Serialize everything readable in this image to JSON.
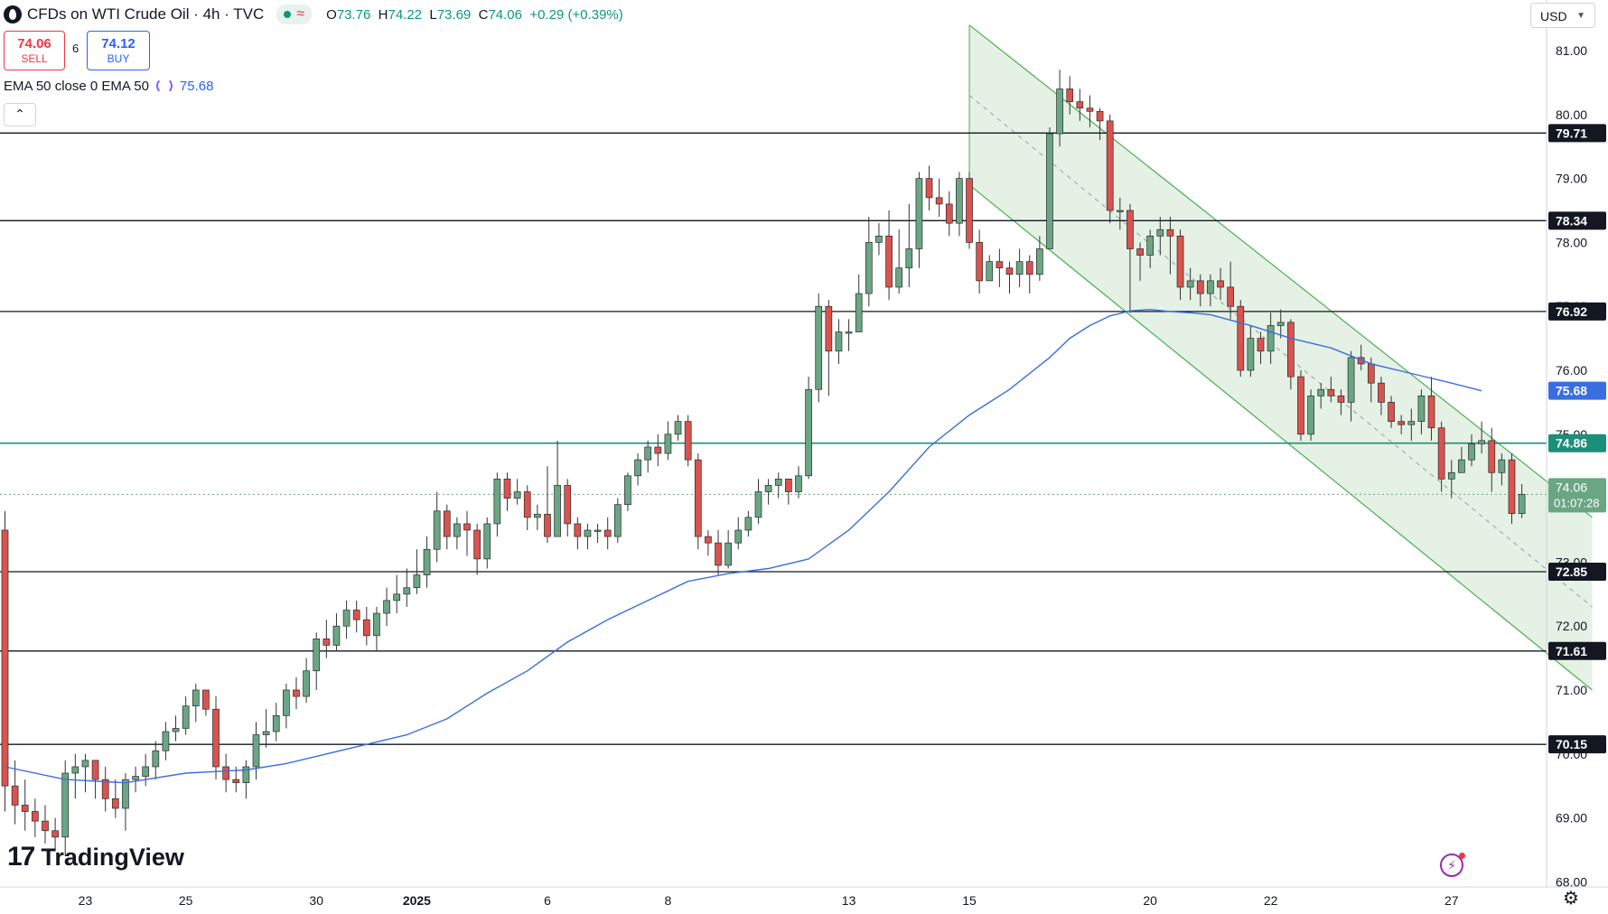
{
  "header": {
    "symbol_title": "CFDs on WTI Crude Oil · 4h · TVC",
    "ohlc": {
      "o_label": "O",
      "o": "73.76",
      "h_label": "H",
      "h": "74.22",
      "l_label": "L",
      "l": "73.69",
      "c_label": "C",
      "c": "74.06",
      "change": "+0.29 (+0.39%)"
    },
    "status_glyph": "≈"
  },
  "trade": {
    "sell_price": "74.06",
    "sell_label": "SELL",
    "spread": "6",
    "buy_price": "74.12",
    "buy_label": "BUY"
  },
  "indicator": {
    "label": "EMA 50 close 0 EMA 50",
    "value": "75.68",
    "icon": "refresh-icon"
  },
  "toolbar": {
    "collapse_glyph": "⌃",
    "currency": "USD",
    "settings_glyph": "⚙"
  },
  "branding": {
    "logo_mark": "17",
    "logo_text": "TradingView"
  },
  "colors": {
    "up": "#6aa684",
    "down": "#d9534f",
    "wick": "#333333",
    "ema": "#3a6ee0",
    "channel_fill": "#e1f0e1",
    "channel_line": "#4caf50",
    "level_line": "#131722",
    "teal_line": "#1b8f7a",
    "price_badge": "#6aa684"
  },
  "chart_data": {
    "type": "candlestick",
    "timeframe": "4h",
    "ylim": [
      68.0,
      81.55
    ],
    "y_ticks": [
      "81.00",
      "80.00",
      "79.00",
      "78.00",
      "77.00",
      "76.00",
      "75.00",
      "74.00",
      "73.00",
      "72.00",
      "71.00",
      "70.00",
      "69.00",
      "68.00"
    ],
    "x_ticks": [
      {
        "label": "23",
        "i": 8
      },
      {
        "label": "25",
        "i": 18
      },
      {
        "label": "30",
        "i": 31
      },
      {
        "label": "2025",
        "i": 41,
        "bold": true
      },
      {
        "label": "6",
        "i": 54
      },
      {
        "label": "8",
        "i": 66
      },
      {
        "label": "13",
        "i": 84
      },
      {
        "label": "15",
        "i": 96
      },
      {
        "label": "20",
        "i": 114
      },
      {
        "label": "22",
        "i": 126
      },
      {
        "label": "27",
        "i": 144
      }
    ],
    "horizontal_levels": [
      {
        "value": 79.71,
        "label": "79.71"
      },
      {
        "value": 78.34,
        "label": "78.34"
      },
      {
        "value": 76.92,
        "label": "76.92"
      },
      {
        "value": 72.85,
        "label": "72.85"
      },
      {
        "value": 71.61,
        "label": "71.61"
      },
      {
        "value": 70.15,
        "label": "70.15"
      }
    ],
    "teal_level": {
      "value": 74.86,
      "label": "74.86"
    },
    "ema_badge": {
      "value": 75.68,
      "label": "75.68"
    },
    "last_price": {
      "value": 74.06,
      "label": "74.06",
      "countdown": "01:07:28"
    },
    "channel": {
      "upper": [
        {
          "i": 96,
          "v": 81.4
        },
        {
          "i": 158,
          "v": 73.7
        }
      ],
      "lower": [
        {
          "i": 96,
          "v": 78.9
        },
        {
          "i": 158,
          "v": 71.0
        }
      ],
      "mid": [
        {
          "i": 96,
          "v": 80.3
        },
        {
          "i": 158,
          "v": 72.3
        }
      ]
    },
    "ema50": [
      [
        0,
        69.8
      ],
      [
        6,
        69.6
      ],
      [
        12,
        69.55
      ],
      [
        18,
        69.7
      ],
      [
        24,
        69.75
      ],
      [
        28,
        69.85
      ],
      [
        32,
        70.0
      ],
      [
        36,
        70.15
      ],
      [
        40,
        70.3
      ],
      [
        44,
        70.55
      ],
      [
        48,
        70.95
      ],
      [
        52,
        71.3
      ],
      [
        56,
        71.75
      ],
      [
        60,
        72.1
      ],
      [
        64,
        72.4
      ],
      [
        68,
        72.7
      ],
      [
        72,
        72.82
      ],
      [
        76,
        72.9
      ],
      [
        80,
        73.05
      ],
      [
        84,
        73.5
      ],
      [
        88,
        74.1
      ],
      [
        92,
        74.8
      ],
      [
        96,
        75.3
      ],
      [
        100,
        75.7
      ],
      [
        104,
        76.2
      ],
      [
        106,
        76.5
      ],
      [
        108,
        76.7
      ],
      [
        110,
        76.85
      ],
      [
        112,
        76.93
      ],
      [
        114,
        76.95
      ],
      [
        116,
        76.92
      ],
      [
        118,
        76.9
      ],
      [
        120,
        76.87
      ],
      [
        124,
        76.7
      ],
      [
        128,
        76.5
      ],
      [
        132,
        76.35
      ],
      [
        136,
        76.1
      ],
      [
        140,
        75.95
      ],
      [
        144,
        75.8
      ],
      [
        147,
        75.68
      ]
    ],
    "candles": [
      [
        73.5,
        69.5,
        73.8,
        69.1
      ],
      [
        69.5,
        69.2,
        69.9,
        68.9
      ],
      [
        69.2,
        69.1,
        69.6,
        68.8
      ],
      [
        69.1,
        68.95,
        69.3,
        68.7
      ],
      [
        68.95,
        68.8,
        69.2,
        68.6
      ],
      [
        68.8,
        68.7,
        69.0,
        68.5
      ],
      [
        68.7,
        69.7,
        69.9,
        68.4
      ],
      [
        69.7,
        69.8,
        70.0,
        69.3
      ],
      [
        69.8,
        69.9,
        70.0,
        69.4
      ],
      [
        69.9,
        69.6,
        69.9,
        69.3
      ],
      [
        69.6,
        69.3,
        69.8,
        69.1
      ],
      [
        69.3,
        69.15,
        69.6,
        69.0
      ],
      [
        69.15,
        69.6,
        69.7,
        68.8
      ],
      [
        69.6,
        69.65,
        69.8,
        69.4
      ],
      [
        69.65,
        69.8,
        70.0,
        69.5
      ],
      [
        69.8,
        70.05,
        70.2,
        69.6
      ],
      [
        70.05,
        70.35,
        70.5,
        69.9
      ],
      [
        70.35,
        70.4,
        70.6,
        70.2
      ],
      [
        70.4,
        70.75,
        70.9,
        70.3
      ],
      [
        70.75,
        71.0,
        71.1,
        70.5
      ],
      [
        71.0,
        70.7,
        71.0,
        70.6
      ],
      [
        70.7,
        69.8,
        70.9,
        69.6
      ],
      [
        69.8,
        69.6,
        70.0,
        69.4
      ],
      [
        69.6,
        69.55,
        69.8,
        69.4
      ],
      [
        69.55,
        69.8,
        69.9,
        69.3
      ],
      [
        69.8,
        70.3,
        70.5,
        69.6
      ],
      [
        70.3,
        70.35,
        70.7,
        70.1
      ],
      [
        70.35,
        70.6,
        70.8,
        70.2
      ],
      [
        70.6,
        71.0,
        71.1,
        70.4
      ],
      [
        71.0,
        70.9,
        71.2,
        70.7
      ],
      [
        70.9,
        71.3,
        71.5,
        70.8
      ],
      [
        71.3,
        71.8,
        71.9,
        71.0
      ],
      [
        71.8,
        71.7,
        72.1,
        71.5
      ],
      [
        71.7,
        72.0,
        72.2,
        71.6
      ],
      [
        72.0,
        72.25,
        72.4,
        71.8
      ],
      [
        72.25,
        72.1,
        72.4,
        71.9
      ],
      [
        72.1,
        71.85,
        72.3,
        71.7
      ],
      [
        71.85,
        72.2,
        72.3,
        71.6
      ],
      [
        72.2,
        72.4,
        72.6,
        72.0
      ],
      [
        72.4,
        72.5,
        72.8,
        72.2
      ],
      [
        72.5,
        72.6,
        72.9,
        72.3
      ],
      [
        72.6,
        72.8,
        73.2,
        72.5
      ],
      [
        72.8,
        73.2,
        73.4,
        72.6
      ],
      [
        73.2,
        73.8,
        74.1,
        73.0
      ],
      [
        73.8,
        73.4,
        73.9,
        73.2
      ],
      [
        73.4,
        73.6,
        73.7,
        73.2
      ],
      [
        73.6,
        73.5,
        73.8,
        73.1
      ],
      [
        73.5,
        73.05,
        73.6,
        72.8
      ],
      [
        73.05,
        73.6,
        73.7,
        72.9
      ],
      [
        73.6,
        74.3,
        74.4,
        73.4
      ],
      [
        74.3,
        74.0,
        74.4,
        73.8
      ],
      [
        74.0,
        74.1,
        74.3,
        73.9
      ],
      [
        74.1,
        73.7,
        74.2,
        73.5
      ],
      [
        73.7,
        73.75,
        73.9,
        73.5
      ],
      [
        73.75,
        73.4,
        74.5,
        73.3
      ],
      [
        73.4,
        74.2,
        74.9,
        73.4
      ],
      [
        74.2,
        73.6,
        74.3,
        73.4
      ],
      [
        73.6,
        73.4,
        73.7,
        73.2
      ],
      [
        73.4,
        73.5,
        73.6,
        73.2
      ],
      [
        73.5,
        73.5,
        73.6,
        73.3
      ],
      [
        73.5,
        73.4,
        73.7,
        73.2
      ],
      [
        73.4,
        73.9,
        74.0,
        73.3
      ],
      [
        73.9,
        74.35,
        74.4,
        73.8
      ],
      [
        74.35,
        74.6,
        74.7,
        74.2
      ],
      [
        74.6,
        74.8,
        74.9,
        74.4
      ],
      [
        74.8,
        74.7,
        75.0,
        74.5
      ],
      [
        74.7,
        75.0,
        75.2,
        74.6
      ],
      [
        75.0,
        75.2,
        75.3,
        74.9
      ],
      [
        75.2,
        74.6,
        75.3,
        74.5
      ],
      [
        74.6,
        73.4,
        74.7,
        73.2
      ],
      [
        73.4,
        73.3,
        73.5,
        73.1
      ],
      [
        73.3,
        72.95,
        73.5,
        72.8
      ],
      [
        72.95,
        73.3,
        73.5,
        72.9
      ],
      [
        73.3,
        73.5,
        73.7,
        73.2
      ],
      [
        73.5,
        73.7,
        73.8,
        73.4
      ],
      [
        73.7,
        74.1,
        74.3,
        73.6
      ],
      [
        74.1,
        74.2,
        74.3,
        73.9
      ],
      [
        74.2,
        74.3,
        74.4,
        74.0
      ],
      [
        74.3,
        74.1,
        74.3,
        73.9
      ],
      [
        74.1,
        74.35,
        74.5,
        74.0
      ],
      [
        74.35,
        75.7,
        75.9,
        74.3
      ],
      [
        75.7,
        77.0,
        77.2,
        75.5
      ],
      [
        77.0,
        76.3,
        77.1,
        75.6
      ],
      [
        76.3,
        76.6,
        76.8,
        76.1
      ],
      [
        76.6,
        76.6,
        76.8,
        76.3
      ],
      [
        76.6,
        77.2,
        77.5,
        77.1
      ],
      [
        77.2,
        78.0,
        78.4,
        77.0
      ],
      [
        78.0,
        78.1,
        78.3,
        77.8
      ],
      [
        78.1,
        77.3,
        78.5,
        77.1
      ],
      [
        77.3,
        77.6,
        78.2,
        77.2
      ],
      [
        77.6,
        77.9,
        78.6,
        77.3
      ],
      [
        77.9,
        79.0,
        79.1,
        77.6
      ],
      [
        79.0,
        78.7,
        79.2,
        78.5
      ],
      [
        78.7,
        78.6,
        79.0,
        78.4
      ],
      [
        78.6,
        78.3,
        78.8,
        78.1
      ],
      [
        78.3,
        79.0,
        79.1,
        78.1
      ],
      [
        79.0,
        78.0,
        79.1,
        77.9
      ],
      [
        78.0,
        77.4,
        78.2,
        77.2
      ],
      [
        77.4,
        77.7,
        77.8,
        77.4
      ],
      [
        77.7,
        77.6,
        77.9,
        77.3
      ],
      [
        77.6,
        77.5,
        77.7,
        77.2
      ],
      [
        77.5,
        77.7,
        77.9,
        77.3
      ],
      [
        77.7,
        77.5,
        77.8,
        77.2
      ],
      [
        77.5,
        77.9,
        78.1,
        77.4
      ],
      [
        77.9,
        79.7,
        79.8,
        78.0
      ],
      [
        79.7,
        80.4,
        80.7,
        79.5
      ],
      [
        80.4,
        80.2,
        80.6,
        80.0
      ],
      [
        80.2,
        80.1,
        80.4,
        79.9
      ],
      [
        80.1,
        80.05,
        80.3,
        79.8
      ],
      [
        80.05,
        79.9,
        80.1,
        79.6
      ],
      [
        79.9,
        78.5,
        80.0,
        78.3
      ],
      [
        78.5,
        78.5,
        78.7,
        78.2
      ],
      [
        78.5,
        77.9,
        78.6,
        76.9
      ],
      [
        77.9,
        77.8,
        78.0,
        77.4
      ],
      [
        77.8,
        78.1,
        78.2,
        77.6
      ],
      [
        78.1,
        78.2,
        78.4,
        77.8
      ],
      [
        78.2,
        78.1,
        78.4,
        77.5
      ],
      [
        78.1,
        77.3,
        78.2,
        77.1
      ],
      [
        77.3,
        77.4,
        77.6,
        77.1
      ],
      [
        77.4,
        77.2,
        77.5,
        77.0
      ],
      [
        77.2,
        77.4,
        77.5,
        77.0
      ],
      [
        77.4,
        77.3,
        77.6,
        77.1
      ],
      [
        77.3,
        77.0,
        77.7,
        76.8
      ],
      [
        77.0,
        76.0,
        77.1,
        75.9
      ],
      [
        76.0,
        76.5,
        76.7,
        75.9
      ],
      [
        76.5,
        76.3,
        76.6,
        76.1
      ],
      [
        76.3,
        76.7,
        76.9,
        76.1
      ],
      [
        76.7,
        76.75,
        76.95,
        76.5
      ],
      [
        76.75,
        75.9,
        76.8,
        75.7
      ],
      [
        75.9,
        75.0,
        76.0,
        74.9
      ],
      [
        75.0,
        75.6,
        75.7,
        74.9
      ],
      [
        75.6,
        75.7,
        75.8,
        75.4
      ],
      [
        75.7,
        75.6,
        75.9,
        75.5
      ],
      [
        75.6,
        75.5,
        75.7,
        75.3
      ],
      [
        75.5,
        76.2,
        76.3,
        75.2
      ],
      [
        76.2,
        76.1,
        76.4,
        76.0
      ],
      [
        76.1,
        75.8,
        76.2,
        75.5
      ],
      [
        75.8,
        75.5,
        75.9,
        75.3
      ],
      [
        75.5,
        75.2,
        75.6,
        75.1
      ],
      [
        75.2,
        75.15,
        75.3,
        75.0
      ],
      [
        75.15,
        75.2,
        75.4,
        74.9
      ],
      [
        75.2,
        75.6,
        75.7,
        75.0
      ],
      [
        75.6,
        75.1,
        75.9,
        74.9
      ],
      [
        75.1,
        74.3,
        75.2,
        74.1
      ],
      [
        74.3,
        74.4,
        74.6,
        74.0
      ],
      [
        74.4,
        74.6,
        74.8,
        74.4
      ],
      [
        74.6,
        74.85,
        75.0,
        74.5
      ],
      [
        74.85,
        74.9,
        75.2,
        74.7
      ],
      [
        74.9,
        74.4,
        75.1,
        74.1
      ],
      [
        74.4,
        74.6,
        74.7,
        74.2
      ],
      [
        74.6,
        73.76,
        74.7,
        73.6
      ],
      [
        73.76,
        74.06,
        74.22,
        73.69
      ]
    ]
  }
}
